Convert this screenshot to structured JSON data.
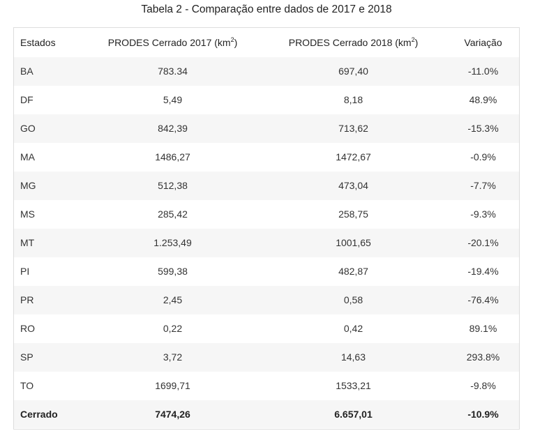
{
  "caption": "Tabela 2 - Comparação entre dados de 2017 e 2018",
  "headers": {
    "estados": "Estados",
    "col2017_prefix": "PRODES Cerrado 2017 (km",
    "col2018_prefix": "PRODES Cerrado 2018 (km",
    "superscript": "2",
    "suffix": ")",
    "variacao": "Variação"
  },
  "rows": [
    {
      "estado": "BA",
      "v2017": "783.34",
      "v2018": "697,40",
      "variacao": "-11.0%"
    },
    {
      "estado": "DF",
      "v2017": "5,49",
      "v2018": "8,18",
      "variacao": "48.9%"
    },
    {
      "estado": "GO",
      "v2017": "842,39",
      "v2018": "713,62",
      "variacao": "-15.3%"
    },
    {
      "estado": "MA",
      "v2017": "1486,27",
      "v2018": "1472,67",
      "variacao": "-0.9%"
    },
    {
      "estado": "MG",
      "v2017": "512,38",
      "v2018": "473,04",
      "variacao": "-7.7%"
    },
    {
      "estado": "MS",
      "v2017": "285,42",
      "v2018": "258,75",
      "variacao": "-9.3%"
    },
    {
      "estado": "MT",
      "v2017": "1.253,49",
      "v2018": "1001,65",
      "variacao": "-20.1%"
    },
    {
      "estado": "PI",
      "v2017": "599,38",
      "v2018": "482,87",
      "variacao": "-19.4%"
    },
    {
      "estado": "PR",
      "v2017": "2,45",
      "v2018": "0,58",
      "variacao": "-76.4%"
    },
    {
      "estado": "RO",
      "v2017": "0,22",
      "v2018": "0,42",
      "variacao": "89.1%"
    },
    {
      "estado": "SP",
      "v2017": "3,72",
      "v2018": "14,63",
      "variacao": "293.8%"
    },
    {
      "estado": "TO",
      "v2017": "1699,71",
      "v2018": "1533,21",
      "variacao": "-9.8%"
    }
  ],
  "total": {
    "estado": "Cerrado",
    "v2017": "7474,26",
    "v2018": "6.657,01",
    "variacao": "-10.9%"
  }
}
